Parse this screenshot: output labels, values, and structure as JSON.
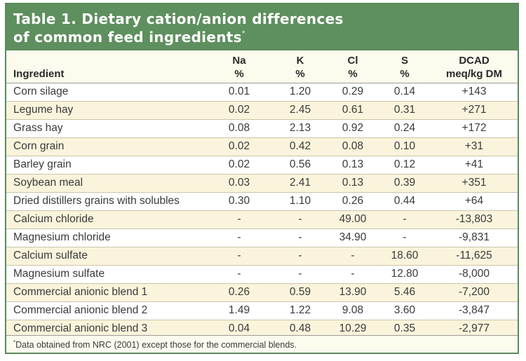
{
  "title": {
    "line1": "Table 1. Dietary cation/anion differences",
    "line2": "of common feed ingredients",
    "marker": "*"
  },
  "headers": {
    "ingredient": "Ingredient",
    "na": "Na",
    "na_unit": "%",
    "k": "K",
    "k_unit": "%",
    "cl": "Cl",
    "cl_unit": "%",
    "s": "S",
    "s_unit": "%",
    "dcad": "DCAD",
    "dcad_unit": "meq/kg DM"
  },
  "rows": [
    {
      "name": "Corn silage",
      "na": "0.01",
      "k": "1.20",
      "cl": "0.29",
      "s": "0.14",
      "dcad": "+143"
    },
    {
      "name": "Legume hay",
      "na": "0.02",
      "k": "2.45",
      "cl": "0.61",
      "s": "0.31",
      "dcad": "+271"
    },
    {
      "name": "Grass hay",
      "na": "0.08",
      "k": "2.13",
      "cl": "0.92",
      "s": "0.24",
      "dcad": "+172"
    },
    {
      "name": "Corn grain",
      "na": "0.02",
      "k": "0.42",
      "cl": "0.08",
      "s": "0.10",
      "dcad": "+31"
    },
    {
      "name": "Barley grain",
      "na": "0.02",
      "k": "0.56",
      "cl": "0.13",
      "s": "0.12",
      "dcad": "+41"
    },
    {
      "name": "Soybean meal",
      "na": "0.03",
      "k": "2.41",
      "cl": "0.13",
      "s": "0.39",
      "dcad": "+351"
    },
    {
      "name": "Dried distillers grains with solubles",
      "na": "0.30",
      "k": "1.10",
      "cl": "0.26",
      "s": "0.44",
      "dcad": "+64"
    },
    {
      "name": "Calcium chloride",
      "na": "-",
      "k": "-",
      "cl": "49.00",
      "s": "-",
      "dcad": "-13,803"
    },
    {
      "name": "Magnesium chloride",
      "na": "-",
      "k": "-",
      "cl": "34.90",
      "s": "-",
      "dcad": "-9,831"
    },
    {
      "name": "Calcium sulfate",
      "na": "-",
      "k": "-",
      "cl": "-",
      "s": "18.60",
      "dcad": "-11,625"
    },
    {
      "name": "Magnesium sulfate",
      "na": "-",
      "k": "-",
      "cl": "-",
      "s": "12.80",
      "dcad": "-8,000"
    },
    {
      "name": "Commercial anionic blend 1",
      "na": "0.26",
      "k": "0.59",
      "cl": "13.90",
      "s": "5.46",
      "dcad": "-7,200"
    },
    {
      "name": "Commercial anionic blend 2",
      "na": "1.49",
      "k": "1.22",
      "cl": "9.08",
      "s": "3.60",
      "dcad": "-3,847"
    },
    {
      "name": "Commercial anionic blend 3",
      "na": "0.04",
      "k": "0.48",
      "cl": "10.29",
      "s": "0.35",
      "dcad": "-2,977"
    }
  ],
  "footnote": {
    "marker": "*",
    "text": "Data obtained from NRC (2001) except those for the commercial blends."
  },
  "colors": {
    "title_bg": "#5e8f5e",
    "row_alt": "#faf4dc",
    "border": "#5a8a5a"
  }
}
